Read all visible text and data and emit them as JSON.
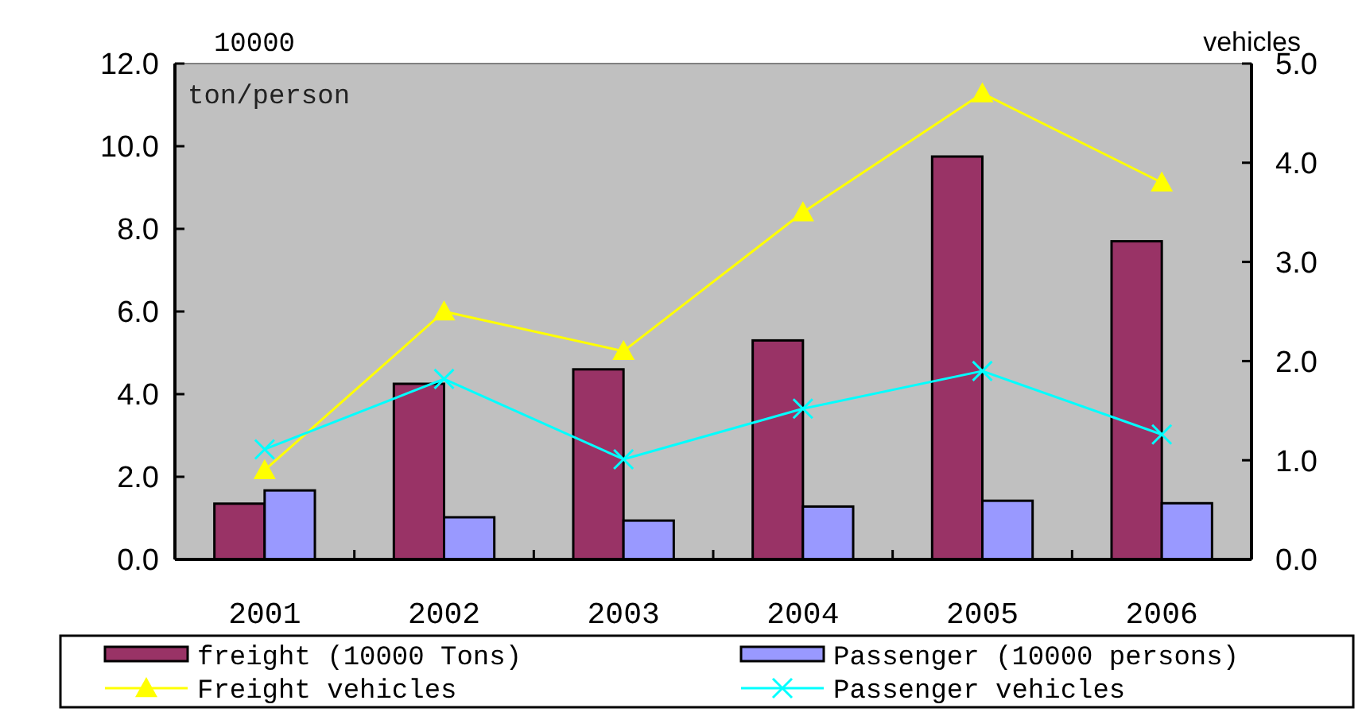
{
  "chart_data": {
    "type": "bar",
    "categories": [
      "2001",
      "2002",
      "2003",
      "2004",
      "2005",
      "2006"
    ],
    "ylabel": "10000 ton/person",
    "y2label": "vehicles",
    "ylim": [
      0,
      12
    ],
    "yticks": [
      {
        "value": 0,
        "label": "0.0"
      },
      {
        "value": 2,
        "label": "2.0"
      },
      {
        "value": 4,
        "label": "4.0"
      },
      {
        "value": 6,
        "label": "6.0"
      },
      {
        "value": 8,
        "label": "8.0"
      },
      {
        "value": 10,
        "label": "10.0"
      },
      {
        "value": 12,
        "label": "12.0"
      }
    ],
    "y2lim": [
      0,
      5
    ],
    "y2ticks": [
      {
        "value": 0,
        "label": "0.0"
      },
      {
        "value": 1,
        "label": "1.0"
      },
      {
        "value": 2,
        "label": "2.0"
      },
      {
        "value": 3,
        "label": "3.0"
      },
      {
        "value": 4,
        "label": "4.0"
      },
      {
        "value": 5,
        "label": "5.0"
      }
    ],
    "legend": "bottom",
    "grid": false,
    "series": [
      {
        "name": "freight (10000 Tons)",
        "color": "#993366",
        "values": [
          1.35,
          4.25,
          4.6,
          5.3,
          9.75,
          7.7
        ]
      },
      {
        "name": "Passenger (10000 persons)",
        "color": "#9999ff",
        "values": [
          1.67,
          1.02,
          0.94,
          1.28,
          1.42,
          1.36
        ]
      },
      {
        "name": "Freight vehicles",
        "type": "line",
        "axis": "y2",
        "color": "#ffff00",
        "marker": "triangle",
        "values": [
          0.9,
          2.5,
          2.1,
          3.5,
          4.7,
          3.8
        ]
      },
      {
        "name": "Passenger vehicles",
        "type": "line",
        "axis": "y2",
        "color": "#00ffff",
        "marker": "cross",
        "values": [
          1.11,
          1.82,
          1.01,
          1.52,
          1.9,
          1.26
        ]
      }
    ]
  }
}
